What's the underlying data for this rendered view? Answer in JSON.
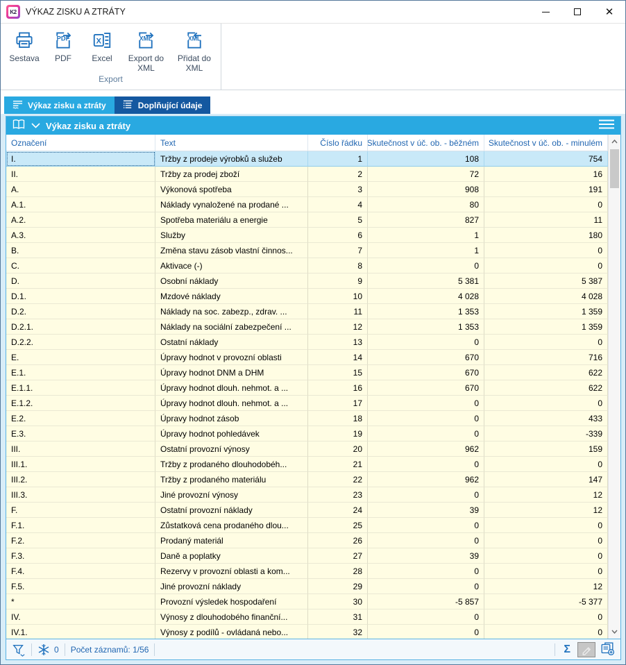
{
  "window": {
    "title": "VÝKAZ ZISKU A ZTRÁTY",
    "logo_text": "K2"
  },
  "toolbar": {
    "group_label": "Export",
    "buttons": [
      {
        "label": "Sestava",
        "icon": "printer-icon"
      },
      {
        "label": "PDF",
        "icon": "pdf-export-icon"
      },
      {
        "label": "Excel",
        "icon": "excel-export-icon"
      },
      {
        "label": "Export do XML",
        "icon": "xml-export-icon"
      },
      {
        "label": "Přidat do XML",
        "icon": "xml-append-icon"
      }
    ]
  },
  "tabs": [
    {
      "label": "Výkaz zisku a ztráty",
      "active": true
    },
    {
      "label": "Doplňující údaje",
      "active": false
    }
  ],
  "grid": {
    "title": "Výkaz zisku a ztráty",
    "selected_row_index": 0,
    "columns": [
      {
        "key": "oznaceni",
        "label": "Označení"
      },
      {
        "key": "text",
        "label": "Text"
      },
      {
        "key": "cislo-radku",
        "label": "Číslo řádku"
      },
      {
        "key": "skutecnost-bezne",
        "label": "Skutečnost v úč. ob. - běžném"
      },
      {
        "key": "skutecnost-minule",
        "label": "Skutečnost v úč. ob. - minulém"
      }
    ],
    "rows": [
      [
        "I.",
        "Tržby z prodeje výrobků a služeb",
        "1",
        "108",
        "754"
      ],
      [
        "II.",
        "Tržby za prodej zboží",
        "2",
        "72",
        "16"
      ],
      [
        "A.",
        "Výkonová spotřeba",
        "3",
        "908",
        "191"
      ],
      [
        "A.1.",
        "Náklady vynaložené na prodané ...",
        "4",
        "80",
        "0"
      ],
      [
        "A.2.",
        "Spotřeba materiálu a energie",
        "5",
        "827",
        "11"
      ],
      [
        "A.3.",
        "Služby",
        "6",
        "1",
        "180"
      ],
      [
        "B.",
        "Změna stavu zásob vlastní činnos...",
        "7",
        "1",
        "0"
      ],
      [
        "C.",
        "Aktivace (-)",
        "8",
        "0",
        "0"
      ],
      [
        "D.",
        "Osobní náklady",
        "9",
        "5 381",
        "5 387"
      ],
      [
        "D.1.",
        "Mzdové náklady",
        "10",
        "4 028",
        "4 028"
      ],
      [
        "D.2.",
        "Náklady na soc. zabezp., zdrav. ...",
        "11",
        "1 353",
        "1 359"
      ],
      [
        "D.2.1.",
        "Náklady na sociální zabezpečení ...",
        "12",
        "1 353",
        "1 359"
      ],
      [
        "D.2.2.",
        "Ostatní náklady",
        "13",
        "0",
        "0"
      ],
      [
        "E.",
        "Úpravy hodnot v provozní oblasti",
        "14",
        "670",
        "716"
      ],
      [
        "E.1.",
        "Úpravy hodnot DNM a DHM",
        "15",
        "670",
        "622"
      ],
      [
        "E.1.1.",
        "Úpravy hodnot dlouh. nehmot. a ...",
        "16",
        "670",
        "622"
      ],
      [
        "E.1.2.",
        "Úpravy hodnot dlouh. nehmot. a ...",
        "17",
        "0",
        "0"
      ],
      [
        "E.2.",
        "Úpravy hodnot zásob",
        "18",
        "0",
        "433"
      ],
      [
        "E.3.",
        "Úpravy hodnot pohledávek",
        "19",
        "0",
        "-339"
      ],
      [
        "III.",
        "Ostatní provozní výnosy",
        "20",
        "962",
        "159"
      ],
      [
        "III.1.",
        "Tržby z prodaného dlouhodobéh...",
        "21",
        "0",
        "0"
      ],
      [
        "III.2.",
        "Tržby z prodaného materiálu",
        "22",
        "962",
        "147"
      ],
      [
        "III.3.",
        "Jiné provozní výnosy",
        "23",
        "0",
        "12"
      ],
      [
        "F.",
        "Ostatní provozní náklady",
        "24",
        "39",
        "12"
      ],
      [
        "F.1.",
        "Zůstatková cena prodaného dlou...",
        "25",
        "0",
        "0"
      ],
      [
        "F.2.",
        "Prodaný materiál",
        "26",
        "0",
        "0"
      ],
      [
        "F.3.",
        "Daně a poplatky",
        "27",
        "39",
        "0"
      ],
      [
        "F.4.",
        "Rezervy v provozní oblasti a kom...",
        "28",
        "0",
        "0"
      ],
      [
        "F.5.",
        "Jiné provozní náklady",
        "29",
        "0",
        "12"
      ],
      [
        "*",
        "Provozní výsledek hospodaření",
        "30",
        "-5 857",
        "-5 377"
      ],
      [
        "IV.",
        "Výnosy z dlouhodobého finanční...",
        "31",
        "0",
        "0"
      ],
      [
        "IV.1.",
        "Výnosy z podílů - ovládaná nebo...",
        "32",
        "0",
        "0"
      ]
    ]
  },
  "statusbar": {
    "frozen_count": "0",
    "record_count": "Počet záznamů: 1/56"
  },
  "colors": {
    "accent_blue": "#29a9e1",
    "inactive_tab_blue": "#1458a0",
    "icon_blue": "#2273be",
    "header_text_blue": "#2166b1",
    "row_yellow": "#fffde3",
    "selected_row_blue": "#c9e9f8"
  }
}
